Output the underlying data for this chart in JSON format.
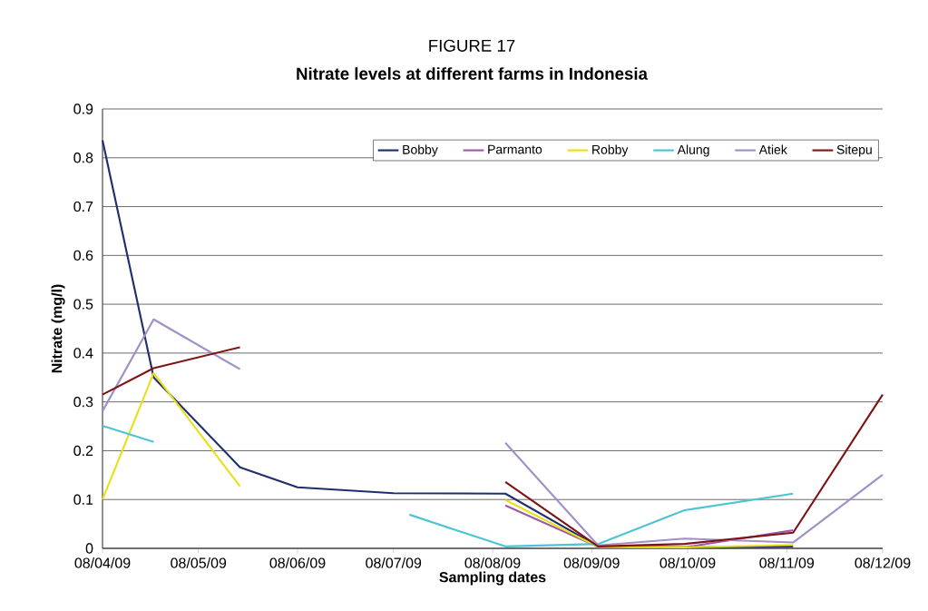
{
  "chart_data": {
    "type": "line",
    "title": "FIGURE 17",
    "subtitle": "Nitrate levels at different farms in Indonesia",
    "xlabel": "Sampling dates",
    "ylabel": "Nitrate (mg/l)",
    "xlim": [
      "2009-04-08",
      "2009-12-08"
    ],
    "xticks": [
      {
        "value": "2009-04-08",
        "label": "08/04/09"
      },
      {
        "value": "2009-05-08",
        "label": "08/05/09"
      },
      {
        "value": "2009-06-08",
        "label": "08/06/09"
      },
      {
        "value": "2009-07-08",
        "label": "08/07/09"
      },
      {
        "value": "2009-08-08",
        "label": "08/08/09"
      },
      {
        "value": "2009-09-08",
        "label": "08/09/09"
      },
      {
        "value": "2009-10-08",
        "label": "08/10/09"
      },
      {
        "value": "2009-11-08",
        "label": "08/11/09"
      },
      {
        "value": "2009-12-08",
        "label": "08/12/09"
      }
    ],
    "ylim": [
      0,
      0.9
    ],
    "yticks": [
      0,
      0.1,
      0.2,
      0.3,
      0.4,
      0.5,
      0.6,
      0.7,
      0.8,
      0.9
    ],
    "grid": "y",
    "legend": "top right",
    "marker": "none",
    "line_style": "solid",
    "series": [
      {
        "name": "Bobby",
        "color": "#1f2f6e",
        "x": [
          "2009-04-08",
          "2009-04-24",
          "2009-05-21",
          "2009-06-08",
          "2009-07-08",
          "2009-08-12",
          "2009-09-10",
          "2009-10-08",
          "2009-11-10"
        ],
        "values": [
          0.836,
          0.35,
          0.166,
          0.125,
          0.113,
          0.112,
          0.004,
          0.002,
          0.004
        ]
      },
      {
        "name": "Parmanto",
        "color": "#9b59a8",
        "x": [
          "2009-08-12",
          "2009-09-10",
          "2009-10-07",
          "2009-11-10"
        ],
        "values": [
          0.088,
          0.003,
          0.002,
          0.037
        ]
      },
      {
        "name": "Robby",
        "color": "#e8e01a",
        "x": [
          "2009-04-08",
          "2009-04-24",
          "2009-05-21",
          "2009-07-01",
          "2009-08-12",
          "2009-09-10",
          "2009-10-07",
          "2009-11-10"
        ],
        "values": [
          0.1,
          0.359,
          0.127,
          null,
          0.099,
          0.003,
          0.002,
          0.007
        ]
      },
      {
        "name": "Alung",
        "color": "#4bc4d4",
        "x": [
          "2009-04-08",
          "2009-04-24",
          "2009-06-01",
          "2009-07-13",
          "2009-08-12",
          "2009-09-10",
          "2009-10-07",
          "2009-11-10"
        ],
        "values": [
          0.251,
          0.218,
          null,
          0.069,
          0.004,
          0.009,
          0.078,
          0.112
        ]
      },
      {
        "name": "Atiek",
        "color": "#a08fc8",
        "x": [
          "2009-04-08",
          "2009-04-24",
          "2009-05-21",
          "2009-07-01",
          "2009-08-12",
          "2009-09-10",
          "2009-10-07",
          "2009-11-10",
          "2009-12-08"
        ],
        "values": [
          0.281,
          0.469,
          0.367,
          null,
          0.216,
          0.006,
          0.02,
          0.012,
          0.151
        ]
      },
      {
        "name": "Sitepu",
        "color": "#7f1416",
        "x": [
          "2009-04-08",
          "2009-04-24",
          "2009-05-21",
          "2009-07-01",
          "2009-08-12",
          "2009-09-10",
          "2009-10-07",
          "2009-11-10",
          "2009-12-08"
        ],
        "values": [
          0.315,
          0.369,
          0.412,
          null,
          0.136,
          0.004,
          0.009,
          0.032,
          0.315
        ]
      }
    ]
  }
}
